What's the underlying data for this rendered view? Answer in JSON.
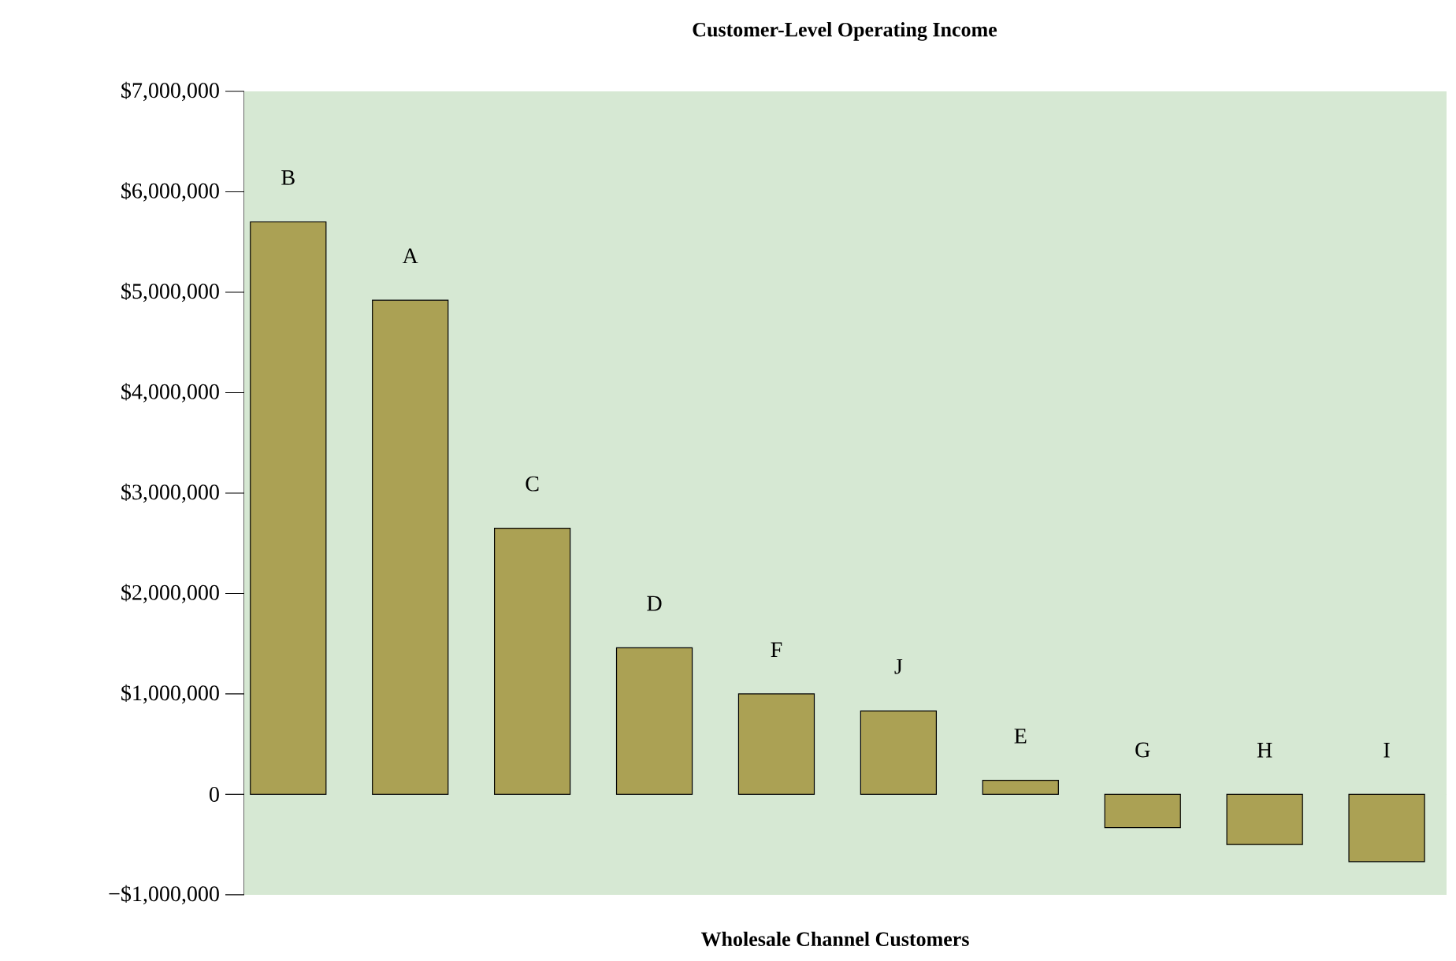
{
  "chart_data": {
    "type": "bar",
    "title": "Customer-Level Operating Income",
    "xlabel": "Wholesale Channel Customers",
    "categories": [
      "B",
      "A",
      "C",
      "D",
      "F",
      "J",
      "E",
      "G",
      "H",
      "I"
    ],
    "values": [
      5700000,
      4920000,
      2650000,
      1460000,
      1000000,
      830000,
      140000,
      -330000,
      -500000,
      -670000
    ],
    "color": "#aba154",
    "ylim": [
      -1000000,
      7000000
    ],
    "yticks": [
      {
        "value": -1000000,
        "label": "−$1,000,000"
      },
      {
        "value": 0,
        "label": "0"
      },
      {
        "value": 1000000,
        "label": "$1,000,000"
      },
      {
        "value": 2000000,
        "label": "$2,000,000"
      },
      {
        "value": 3000000,
        "label": "$3,000,000"
      },
      {
        "value": 4000000,
        "label": "$4,000,000"
      },
      {
        "value": 5000000,
        "label": "$5,000,000"
      },
      {
        "value": 6000000,
        "label": "$6,000,000"
      },
      {
        "value": 7000000,
        "label": "$7,000,000"
      }
    ]
  }
}
